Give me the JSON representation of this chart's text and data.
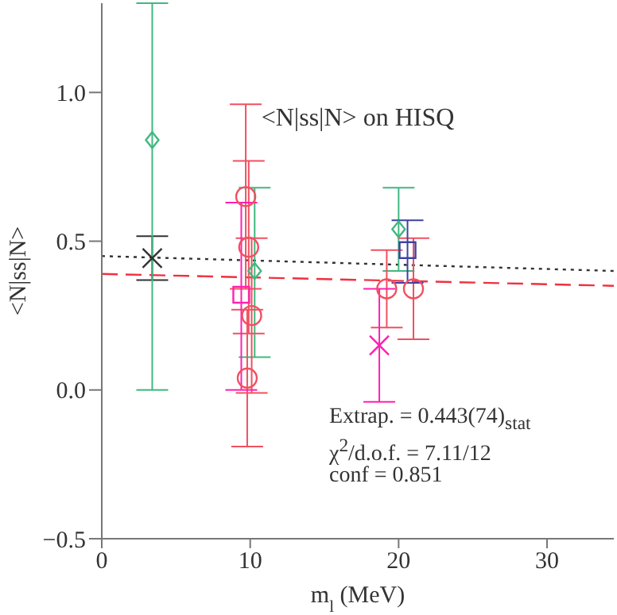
{
  "chart_data": {
    "type": "scatter",
    "title": "<N|ss|N> on HISQ",
    "xlabel": "m$_{l}$ (MeV)",
    "ylabel": "<N|ss|N>",
    "annotations": [
      "Extrap. = 0.443(74)$_{stat}$",
      "χ$^{2}$/d.o.f. = 7.11/12",
      "conf = 0.851"
    ],
    "xlim": [
      0,
      34.5
    ],
    "xticks": [
      0,
      10,
      20,
      30
    ],
    "ylim": [
      -0.5,
      1.3
    ],
    "yticks": [
      {
        "value": -0.5,
        "label": "−0.5"
      },
      {
        "value": 0,
        "label": "0.0"
      },
      {
        "value": 0.5,
        "label": "0.5"
      },
      {
        "value": 1,
        "label": "1.0"
      }
    ],
    "grid": false,
    "series": [
      {
        "type": "line",
        "color": "#333333",
        "x": [
          0,
          34.5
        ],
        "values": [
          0.45,
          0.4
        ],
        "line_style": "dotted",
        "marker": "none"
      },
      {
        "type": "line",
        "color": "#f03040",
        "x": [
          0,
          34.5
        ],
        "values": [
          0.39,
          0.35
        ],
        "line_style": "dashed",
        "marker": "none"
      },
      {
        "color": "#333333",
        "marker": "cross",
        "x": [
          3.4
        ],
        "values": [
          0.443
        ],
        "errors": [
          0.074
        ]
      },
      {
        "color": "#40b880",
        "marker": "diamond",
        "x": [
          3.4,
          10.3,
          20.0
        ],
        "values": [
          0.84,
          0.4,
          0.54
        ],
        "errors": [
          [
            0.0,
            1.3
          ],
          [
            0.11,
            0.68
          ],
          [
            0.4,
            0.68
          ]
        ]
      },
      {
        "color": "#f05060",
        "marker": "circle",
        "x": [
          9.7,
          9.9,
          10.1,
          9.8,
          19.2,
          21.0
        ],
        "values": [
          0.65,
          0.48,
          0.25,
          0.04,
          0.34,
          0.34
        ],
        "errors": [
          [
            0.34,
            0.96
          ],
          [
            0.19,
            0.77
          ],
          [
            -0.01,
            0.51
          ],
          [
            -0.19,
            0.27
          ],
          [
            0.21,
            0.47
          ],
          [
            0.17,
            0.51
          ]
        ]
      },
      {
        "color": "#ff20b0",
        "marker": "square",
        "x": [
          9.4
        ],
        "values": [
          0.32
        ],
        "errors": [
          [
            0.0,
            0.63
          ]
        ]
      },
      {
        "color": "#ff20b0",
        "marker": "cross",
        "x": [
          18.7
        ],
        "values": [
          0.15
        ],
        "errors": [
          [
            -0.04,
            0.34
          ]
        ]
      },
      {
        "color": "#4040a0",
        "marker": "square",
        "x": [
          20.6
        ],
        "values": [
          0.47
        ],
        "errors": [
          [
            0.36,
            0.57
          ]
        ]
      }
    ]
  }
}
